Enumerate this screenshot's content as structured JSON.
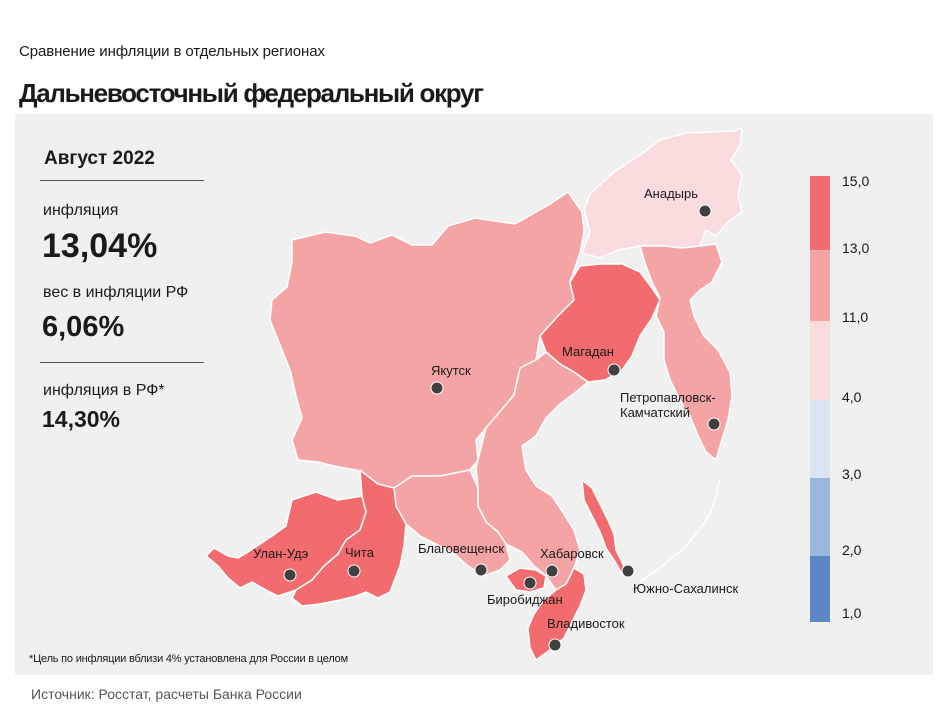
{
  "header": {
    "subtitle": "Сравнение  инфляции  в отдельных  регионах",
    "title": "Дальневосточный федеральный округ"
  },
  "stats": {
    "period": "Август 2022",
    "inflation_label": "инфляция",
    "inflation_value": "13,04%",
    "weight_label": "вес в инфляции  РФ",
    "weight_value": "6,06%",
    "rf_label": "инфляция  в РФ*",
    "rf_value": "14,30%"
  },
  "footnote": "*Цель по инфляции вблизи 4% установлена для России в целом",
  "source": "Источник: Росстат, расчеты  Банка  России",
  "legend": {
    "ticks": [
      "15,0",
      "13,0",
      "11,0",
      "4,0",
      "3,0",
      "2,0",
      "1,0"
    ],
    "colors": [
      "#f26b6e",
      "#f5a4a6",
      "#fadcdf",
      "#dae4f3",
      "#9ab7dc",
      "#5b87c4"
    ]
  },
  "map": {
    "colors": {
      "high": "#f26b6e",
      "mid": "#f5a4a6",
      "low": "#fadcdf",
      "border": "#ffffff",
      "dot": "#404040"
    },
    "regions": [
      {
        "name": "Чукотский АО",
        "color_key": "low"
      },
      {
        "name": "Магаданская область",
        "color_key": "high"
      },
      {
        "name": "Камчатский край",
        "color_key": "mid"
      },
      {
        "name": "Республика Саха (Якутия)",
        "color_key": "mid"
      },
      {
        "name": "Хабаровский край",
        "color_key": "mid"
      },
      {
        "name": "Амурская область",
        "color_key": "mid"
      },
      {
        "name": "Республика Бурятия",
        "color_key": "high"
      },
      {
        "name": "Забайкальский край",
        "color_key": "high"
      },
      {
        "name": "Еврейская АО",
        "color_key": "high"
      },
      {
        "name": "Приморский край",
        "color_key": "high"
      },
      {
        "name": "Сахалинская область",
        "color_key": "high"
      }
    ],
    "cities": [
      {
        "name": "Анадырь"
      },
      {
        "name": "Магадан"
      },
      {
        "name": "Якутск"
      },
      {
        "name": "Петропавловск-",
        "name2": "Камчатский"
      },
      {
        "name": "Улан-Удэ"
      },
      {
        "name": "Чита"
      },
      {
        "name": "Благовещенск"
      },
      {
        "name": "Хабаровск"
      },
      {
        "name": "Биробиджан"
      },
      {
        "name": "Южно-Сахалинск"
      },
      {
        "name": "Владивосток"
      }
    ]
  }
}
